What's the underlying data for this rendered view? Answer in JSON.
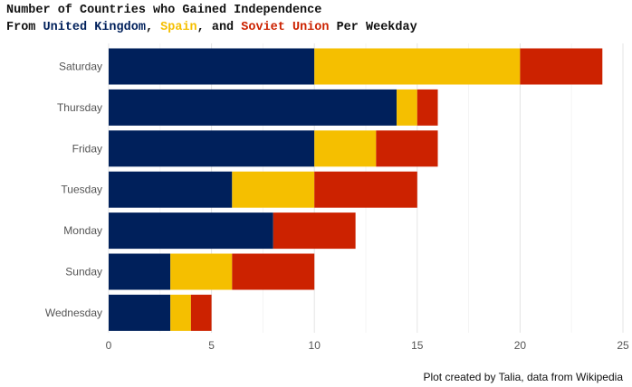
{
  "title": {
    "line1": "Number of Countries who Gained Independence",
    "line2_prefix": "From ",
    "line2_sep1": ", ",
    "line2_sep2": ", and ",
    "line2_suffix": " Per Weekday"
  },
  "caption": "Plot created by Talia, data from Wikipedia",
  "chart_data": {
    "type": "bar",
    "orientation": "horizontal",
    "stacked": true,
    "categories": [
      "Saturday",
      "Thursday",
      "Friday",
      "Tuesday",
      "Monday",
      "Sunday",
      "Wednesday"
    ],
    "series": [
      {
        "name": "United Kingdom",
        "color": "#00205b",
        "values": [
          10,
          14,
          10,
          6,
          8,
          3,
          3
        ]
      },
      {
        "name": "Spain",
        "color": "#f5bf00",
        "values": [
          10,
          1,
          3,
          4,
          0,
          3,
          1
        ]
      },
      {
        "name": "Soviet Union",
        "color": "#cc2200",
        "values": [
          4,
          1,
          3,
          5,
          4,
          4,
          1
        ]
      }
    ],
    "xlim": [
      0,
      25
    ],
    "xticks": [
      0,
      5,
      10,
      15,
      20,
      25
    ],
    "grid": "vertical major lines",
    "legend": "none (series named in title colors)"
  }
}
